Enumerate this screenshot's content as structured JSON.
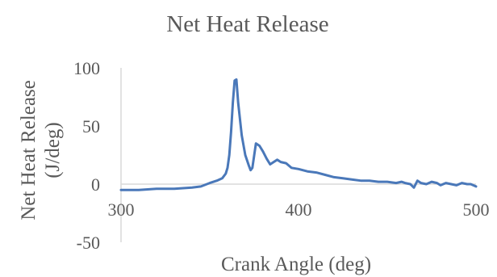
{
  "chart_data": {
    "type": "line",
    "title": "Net Heat Release",
    "xlabel": "Crank Angle (deg)",
    "ylabel": "Net Heat Release (J/deg)",
    "xlim": [
      300,
      500
    ],
    "ylim": [
      -50,
      100
    ],
    "xticks": [
      300,
      400,
      500
    ],
    "yticks": [
      -50,
      0,
      50,
      100
    ],
    "x_tick_labels": [
      "300",
      "400",
      "500"
    ],
    "y_tick_labels": [
      "-50",
      "0",
      "50",
      "100"
    ],
    "grid": false,
    "legend": "none",
    "line_color": "#4a78b9",
    "series": [
      {
        "x": [
          300,
          310,
          320,
          330,
          340,
          345,
          350,
          354,
          357,
          359,
          360,
          361,
          362,
          363,
          364,
          365,
          366,
          368,
          370,
          372,
          373,
          374,
          376,
          378,
          380,
          382,
          384,
          386,
          388,
          390,
          393,
          396,
          400,
          405,
          410,
          415,
          420,
          425,
          430,
          435,
          440,
          445,
          450,
          455,
          458,
          460,
          463,
          465,
          467,
          469,
          472,
          475,
          478,
          480,
          483,
          486,
          489,
          492,
          495,
          497,
          500
        ],
        "y": [
          -5,
          -5,
          -4,
          -4,
          -3,
          -2,
          1,
          3,
          5,
          9,
          14,
          25,
          45,
          70,
          89,
          90,
          70,
          42,
          25,
          16,
          12,
          14,
          35,
          33,
          28,
          22,
          17,
          19,
          21,
          19,
          18,
          14,
          13,
          11,
          10,
          8,
          6,
          5,
          4,
          3,
          3,
          2,
          2,
          1,
          2,
          1,
          0,
          -3,
          3,
          1,
          0,
          2,
          1,
          -1,
          1,
          0,
          -1,
          1,
          0,
          0,
          -2
        ]
      }
    ]
  }
}
